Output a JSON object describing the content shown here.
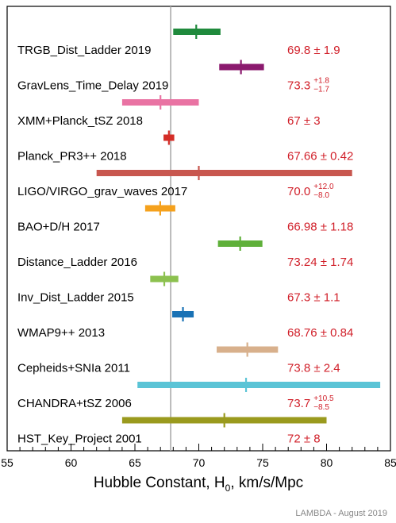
{
  "chart_data": {
    "type": "forest",
    "x_axis": {
      "label": "Hubble Constant, H",
      "label_subscript": "0",
      "label_units": ", km/s/Mpc",
      "range": [
        55,
        85
      ],
      "ticks": [
        "55",
        "60",
        "65",
        "70",
        "75",
        "80",
        "85"
      ]
    },
    "reference_line": {
      "x": 67.8
    },
    "credit": "LAMBDA - August 2019",
    "entries": [
      {
        "name": "TRGB_Dist_Ladder 2019",
        "value": 69.8,
        "lo": 68.0,
        "hi": 71.7,
        "display": "69.8 ± 1.9",
        "color": "#1f8a3c"
      },
      {
        "name": "GravLens_Time_Delay 2019",
        "value": 73.3,
        "lo": 71.6,
        "hi": 75.1,
        "display": "73.3",
        "plus": "+1.8",
        "minus": "−1.7",
        "color": "#8b1a6e"
      },
      {
        "name": "XMM+Planck_tSZ 2018",
        "value": 67.0,
        "lo": 64.0,
        "hi": 70.0,
        "display": "67 ± 3",
        "color": "#e973a3"
      },
      {
        "name": "Planck_PR3++ 2018",
        "value": 67.66,
        "lo": 67.24,
        "hi": 68.08,
        "display": "67.66 ± 0.42",
        "color": "#d42d27"
      },
      {
        "name": "LIGO/VIRGO_grav_waves 2017",
        "value": 70.0,
        "lo": 62.0,
        "hi": 82.0,
        "display": "70.0",
        "plus": "+12.0",
        "minus": "−8.0",
        "color": "#c8574f"
      },
      {
        "name": "BAO+D/H 2017",
        "value": 66.98,
        "lo": 65.8,
        "hi": 68.16,
        "display": "66.98 ± 1.18",
        "color": "#f5a11c"
      },
      {
        "name": "Distance_Ladder 2016",
        "value": 73.24,
        "lo": 71.5,
        "hi": 74.98,
        "display": "73.24 ± 1.74",
        "color": "#5fb03a"
      },
      {
        "name": "Inv_Dist_Ladder 2015",
        "value": 67.3,
        "lo": 66.2,
        "hi": 68.4,
        "display": "67.3 ± 1.1",
        "color": "#8cc14f"
      },
      {
        "name": "WMAP9++ 2013",
        "value": 68.76,
        "lo": 67.92,
        "hi": 69.6,
        "display": "68.76 ± 0.84",
        "color": "#1a72b5"
      },
      {
        "name": "Cepheids+SNIa 2011",
        "value": 73.8,
        "lo": 71.4,
        "hi": 76.2,
        "display": "73.8 ± 2.4",
        "color": "#d8b08c"
      },
      {
        "name": "CHANDRA+tSZ 2006",
        "value": 73.7,
        "lo": 65.2,
        "hi": 84.2,
        "display": "73.7",
        "plus": "+10.5",
        "minus": "−8.5",
        "color": "#5bc4d6"
      },
      {
        "name": "HST_Key_Project 2001",
        "value": 72.0,
        "lo": 64.0,
        "hi": 80.0,
        "display": "72 ± 8",
        "color": "#9a9a1e"
      }
    ]
  }
}
